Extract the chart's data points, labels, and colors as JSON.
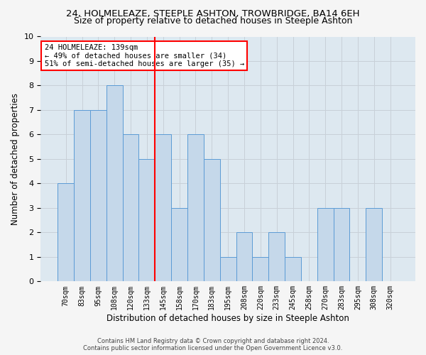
{
  "title_line1": "24, HOLMELEAZE, STEEPLE ASHTON, TROWBRIDGE, BA14 6EH",
  "title_line2": "Size of property relative to detached houses in Steeple Ashton",
  "xlabel": "Distribution of detached houses by size in Steeple Ashton",
  "ylabel": "Number of detached properties",
  "bar_labels": [
    "70sqm",
    "83sqm",
    "95sqm",
    "108sqm",
    "120sqm",
    "133sqm",
    "145sqm",
    "158sqm",
    "170sqm",
    "183sqm",
    "195sqm",
    "208sqm",
    "220sqm",
    "233sqm",
    "245sqm",
    "258sqm",
    "270sqm",
    "283sqm",
    "295sqm",
    "308sqm",
    "320sqm"
  ],
  "bar_values": [
    4,
    7,
    7,
    8,
    6,
    5,
    6,
    3,
    6,
    5,
    1,
    2,
    1,
    2,
    1,
    0,
    3,
    3,
    0,
    3,
    0
  ],
  "bar_color": "#c5d8ea",
  "bar_edgecolor": "#5b9bd5",
  "vline_x": 5.5,
  "vline_color": "red",
  "annotation_text": "24 HOLMELEAZE: 139sqm\n← 49% of detached houses are smaller (34)\n51% of semi-detached houses are larger (35) →",
  "annotation_box_color": "white",
  "annotation_box_edgecolor": "red",
  "ylim": [
    0,
    10
  ],
  "yticks": [
    0,
    1,
    2,
    3,
    4,
    5,
    6,
    7,
    8,
    9,
    10
  ],
  "grid_color": "#c8d0d8",
  "bg_color": "#dde8f0",
  "fig_bg_color": "#f5f5f5",
  "footer_line1": "Contains HM Land Registry data © Crown copyright and database right 2024.",
  "footer_line2": "Contains public sector information licensed under the Open Government Licence v3.0.",
  "title1_fontsize": 9.5,
  "title2_fontsize": 9,
  "ylabel_fontsize": 8.5,
  "xlabel_fontsize": 8.5,
  "tick_fontsize": 7,
  "annot_fontsize": 7.5,
  "footer_fontsize": 6
}
